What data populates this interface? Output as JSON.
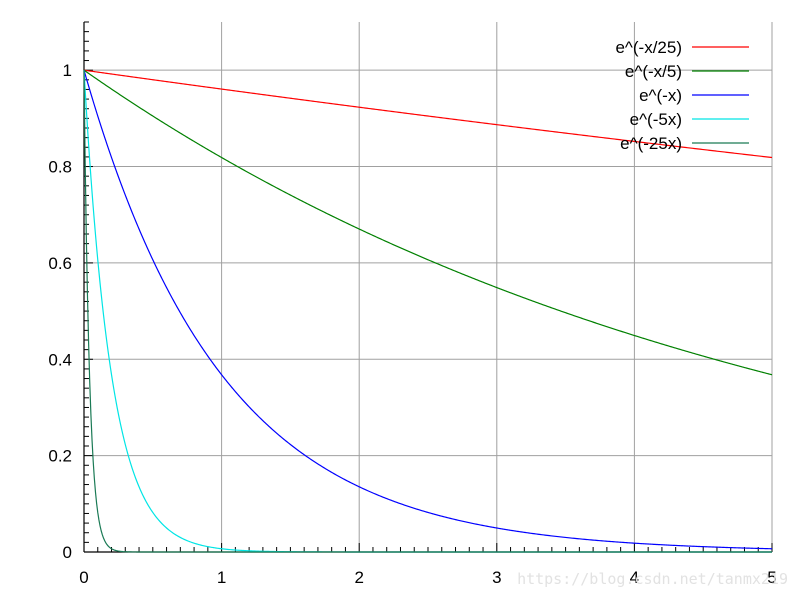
{
  "chart_data": {
    "type": "line",
    "title": "",
    "xlabel": "",
    "ylabel": "",
    "xlim": [
      0,
      5
    ],
    "ylim": [
      0,
      1.1
    ],
    "x_ticks": [
      "0",
      "1",
      "2",
      "3",
      "4",
      "5"
    ],
    "y_ticks": [
      "0",
      "0.2",
      "0.4",
      "0.6",
      "0.8",
      "1"
    ],
    "grid": true,
    "legend_position": "top-right",
    "series": [
      {
        "name": "e^(-x/25)",
        "color": "#ff0000",
        "rate": 0.04,
        "x": [
          0,
          1,
          2,
          3,
          4,
          5
        ],
        "y": [
          1,
          0.961,
          0.923,
          0.887,
          0.852,
          0.819
        ]
      },
      {
        "name": "e^(-x/5)",
        "color": "#008000",
        "rate": 0.2,
        "x": [
          0,
          1,
          2,
          3,
          4,
          5
        ],
        "y": [
          1,
          0.819,
          0.67,
          0.549,
          0.449,
          0.368
        ]
      },
      {
        "name": "e^(-x)",
        "color": "#0000ff",
        "rate": 1,
        "x": [
          0,
          1,
          2,
          3,
          4,
          5
        ],
        "y": [
          1,
          0.368,
          0.135,
          0.05,
          0.018,
          0.007
        ]
      },
      {
        "name": "e^(-5x)",
        "color": "#00e5e5",
        "rate": 5,
        "x": [
          0,
          0.2,
          0.4,
          0.6,
          0.8,
          1
        ],
        "y": [
          1,
          0.368,
          0.135,
          0.05,
          0.018,
          0.007
        ]
      },
      {
        "name": "e^(-25x)",
        "color": "#1a7a55",
        "rate": 25,
        "x": [
          0,
          0.04,
          0.08,
          0.12,
          0.16,
          0.2
        ],
        "y": [
          1,
          0.368,
          0.135,
          0.05,
          0.018,
          0.007
        ]
      }
    ]
  },
  "watermark": "https://blog.csdn.net/tanmx219"
}
